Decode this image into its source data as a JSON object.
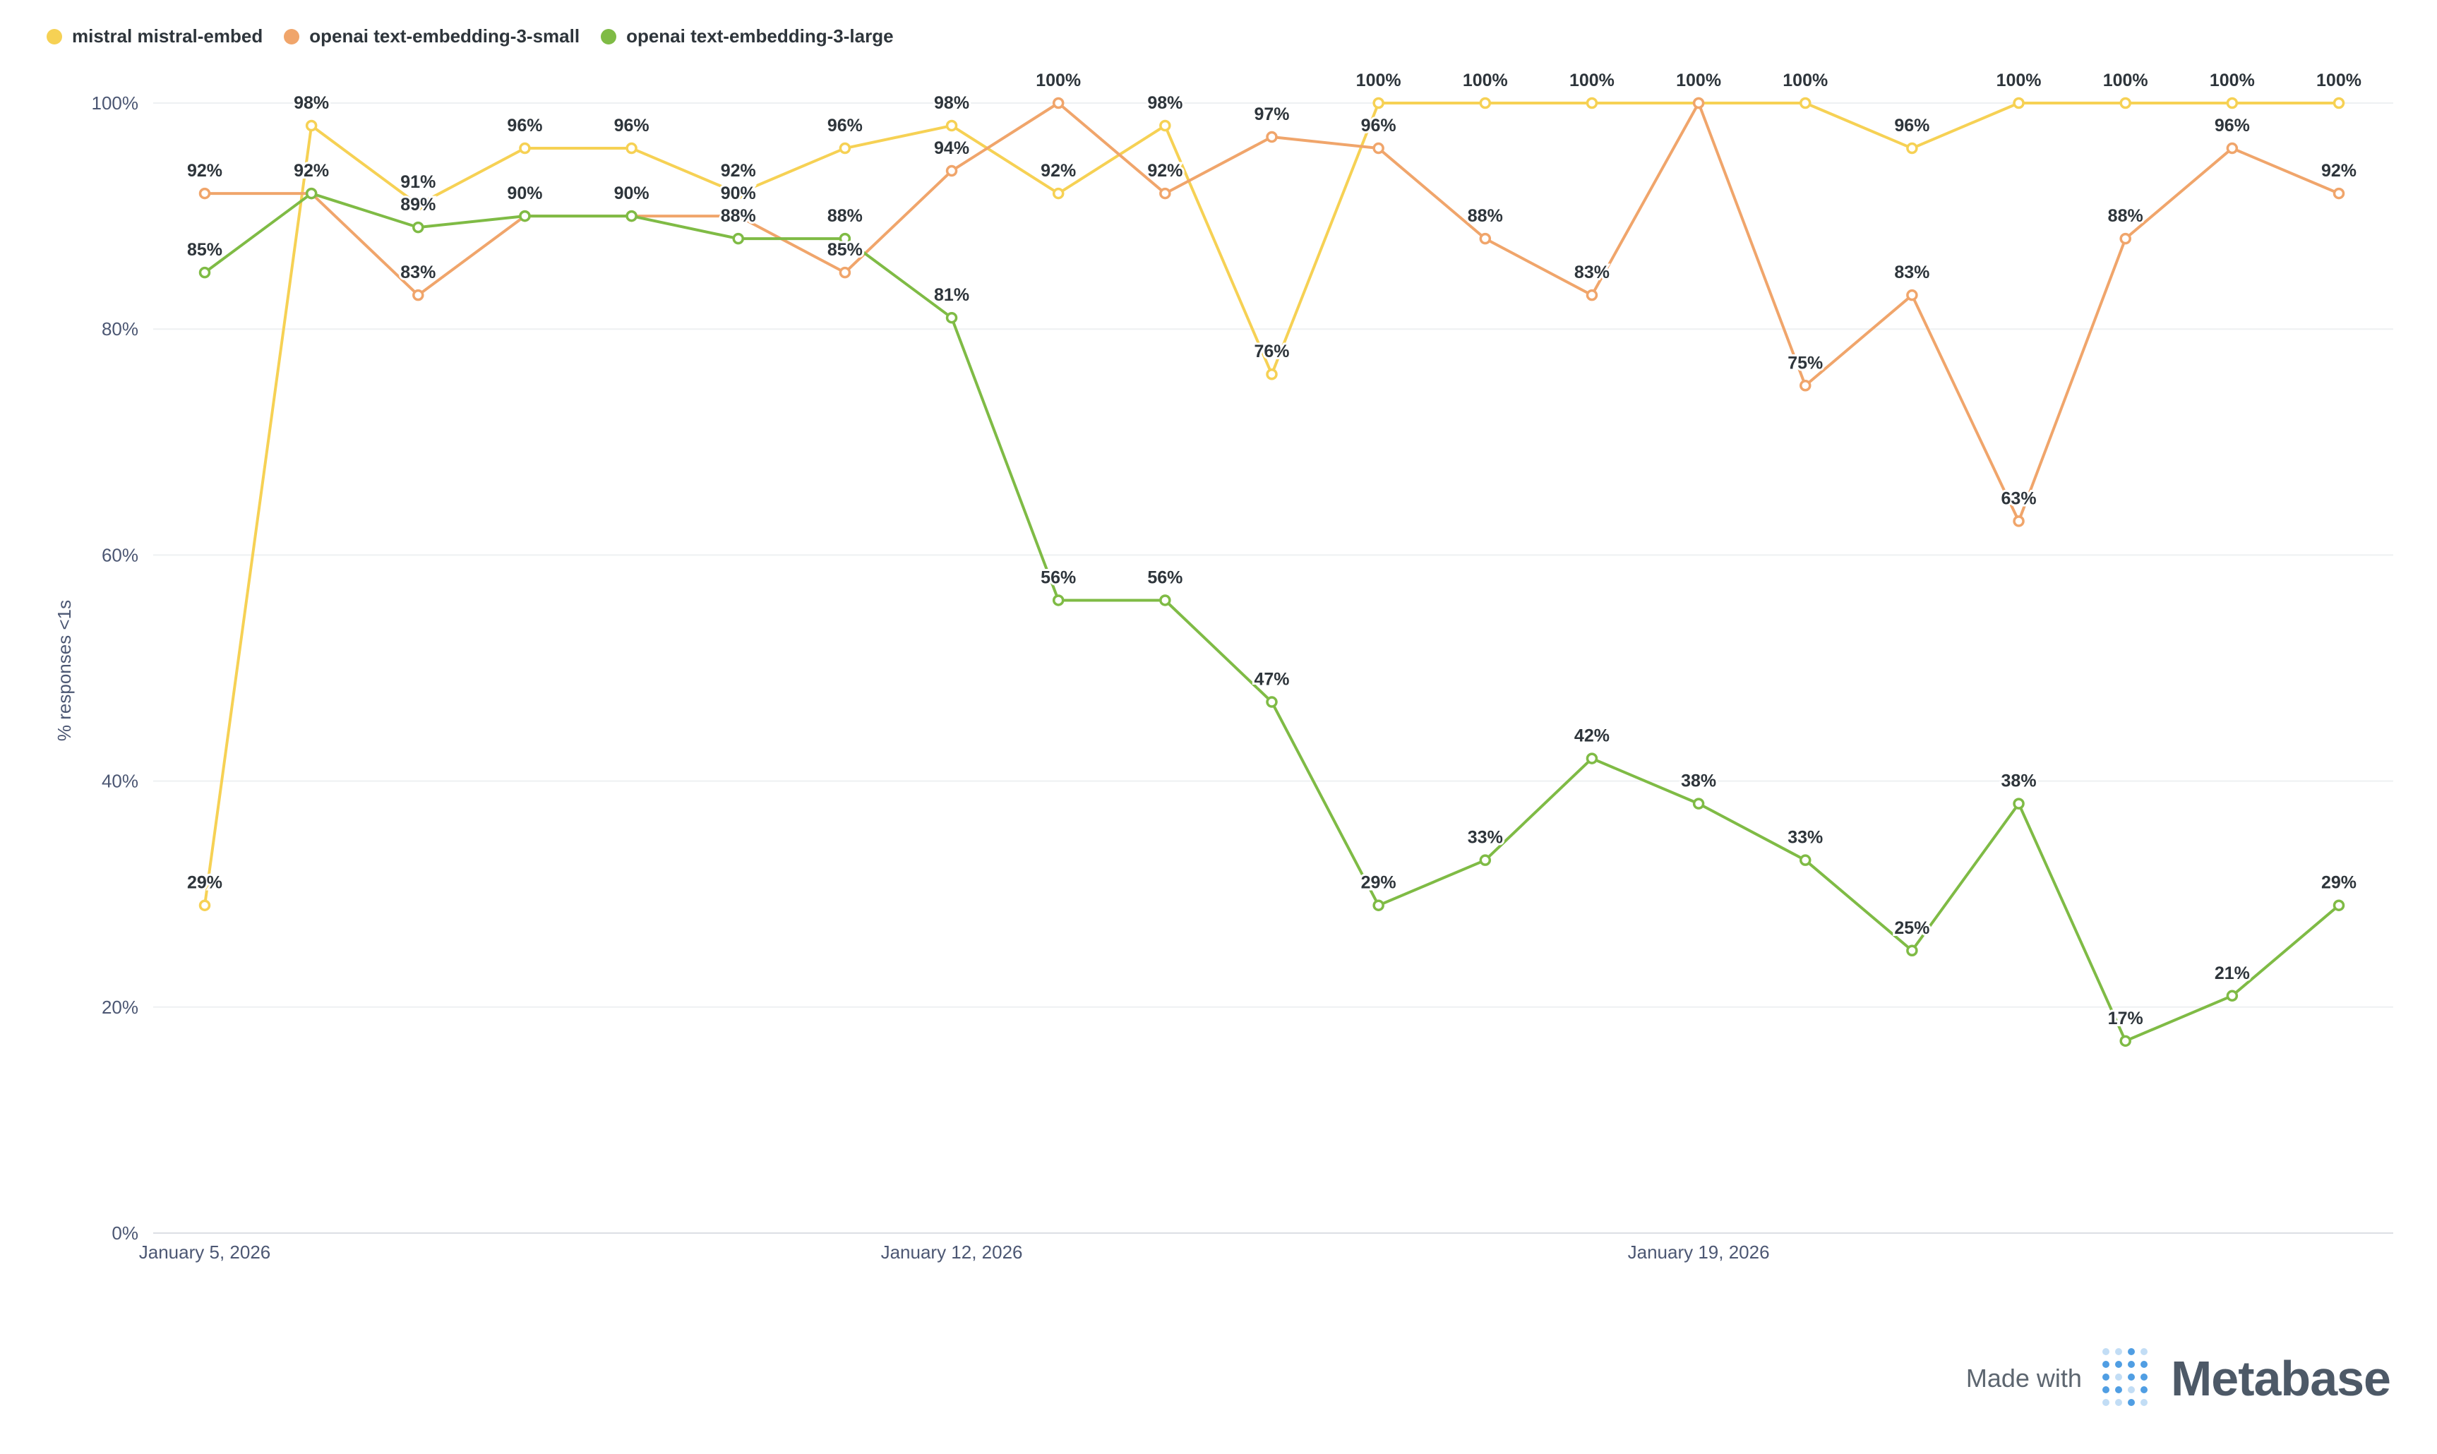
{
  "chart_data": {
    "type": "line",
    "title": "",
    "xlabel": "",
    "ylabel": "% responses <1s",
    "ylim": [
      0,
      100
    ],
    "yticks": [
      "0%",
      "20%",
      "40%",
      "60%",
      "80%",
      "100%"
    ],
    "xtick_labels": [
      {
        "index": 0,
        "label": "January 5, 2026"
      },
      {
        "index": 7,
        "label": "January 12, 2026"
      },
      {
        "index": 14,
        "label": "January 19, 2026"
      }
    ],
    "num_points": 21,
    "series": [
      {
        "name": "mistral mistral-embed",
        "color": "#f6d154",
        "values": [
          29,
          98,
          91,
          96,
          96,
          92,
          96,
          98,
          92,
          98,
          76,
          100,
          100,
          100,
          100,
          100,
          96,
          100,
          100,
          100,
          100
        ],
        "labels": [
          "29%",
          "98%",
          "91%",
          "96%",
          "96%",
          "92%",
          "96%",
          "98%",
          "92%",
          "98%",
          "76%",
          "100%",
          "100%",
          "100%",
          "100%",
          "100%",
          "96%",
          "100%",
          "100%",
          "100%",
          "100%"
        ]
      },
      {
        "name": "openai text-embedding-3-small",
        "color": "#f0a56b",
        "values": [
          92,
          92,
          83,
          90,
          90,
          90,
          85,
          94,
          100,
          92,
          97,
          96,
          88,
          83,
          100,
          75,
          83,
          63,
          88,
          96,
          92
        ],
        "labels": [
          "92%",
          "",
          "83%",
          "",
          "",
          "90%",
          "85%",
          "94%",
          "100%",
          "92%",
          "97%",
          "96%",
          "88%",
          "83%",
          "",
          "75%",
          "83%",
          "63%",
          "88%",
          "96%",
          "92%"
        ]
      },
      {
        "name": "openai text-embedding-3-large",
        "color": "#7fbb45",
        "values": [
          85,
          92,
          89,
          90,
          90,
          88,
          88,
          81,
          56,
          56,
          47,
          29,
          33,
          42,
          38,
          33,
          25,
          38,
          17,
          21,
          29
        ],
        "labels": [
          "85%",
          "92%",
          "89%",
          "90%",
          "90%",
          "88%",
          "88%",
          "81%",
          "56%",
          "56%",
          "47%",
          "29%",
          "33%",
          "42%",
          "38%",
          "33%",
          "25%",
          "38%",
          "17%",
          "21%",
          "29%"
        ]
      }
    ]
  },
  "footer": {
    "made_with": "Made with",
    "brand": "Metabase"
  }
}
